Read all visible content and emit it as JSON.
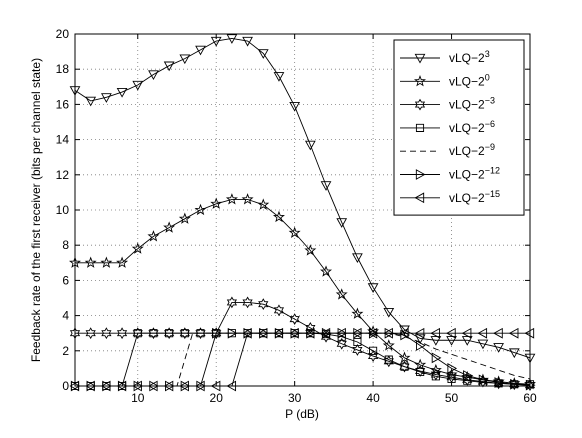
{
  "chart_data": {
    "type": "line",
    "xlabel": "P (dB)",
    "ylabel": "Feedback rate of the first receiver (bits per channel state)",
    "xlim": [
      2,
      60
    ],
    "ylim": [
      0,
      20
    ],
    "xticks": [
      10,
      20,
      30,
      40,
      50,
      60
    ],
    "yticks": [
      0,
      2,
      4,
      6,
      8,
      10,
      12,
      14,
      16,
      18,
      20
    ],
    "grid": true,
    "legend_position": "top-right",
    "series": [
      {
        "label_prefix": "vLQ−2",
        "label_exp": "3",
        "marker": "triangle-down",
        "dash": "solid",
        "points": [
          [
            2,
            16.8
          ],
          [
            4,
            16.2
          ],
          [
            6,
            16.4
          ],
          [
            8,
            16.7
          ],
          [
            10,
            17.1
          ],
          [
            12,
            17.7
          ],
          [
            14,
            18.2
          ],
          [
            16,
            18.6
          ],
          [
            18,
            19.1
          ],
          [
            20,
            19.6
          ],
          [
            22,
            19.75
          ],
          [
            24,
            19.6
          ],
          [
            26,
            18.9
          ],
          [
            28,
            17.6
          ],
          [
            30,
            15.9
          ],
          [
            32,
            13.7
          ],
          [
            34,
            11.4
          ],
          [
            36,
            9.3
          ],
          [
            38,
            7.3
          ],
          [
            40,
            5.6
          ],
          [
            42,
            4.2
          ],
          [
            44,
            3.2
          ],
          [
            46,
            2.7
          ],
          [
            48,
            2.6
          ],
          [
            50,
            2.6
          ],
          [
            52,
            2.6
          ],
          [
            54,
            2.4
          ],
          [
            56,
            2.2
          ],
          [
            58,
            1.9
          ],
          [
            60,
            1.6
          ]
        ]
      },
      {
        "label_prefix": "vLQ−2",
        "label_exp": "0",
        "marker": "star",
        "dash": "solid",
        "points": [
          [
            2,
            7.0
          ],
          [
            4,
            7.0
          ],
          [
            6,
            7.0
          ],
          [
            8,
            7.0
          ],
          [
            10,
            7.8
          ],
          [
            12,
            8.5
          ],
          [
            14,
            9.0
          ],
          [
            16,
            9.5
          ],
          [
            18,
            10.0
          ],
          [
            20,
            10.35
          ],
          [
            22,
            10.6
          ],
          [
            24,
            10.6
          ],
          [
            26,
            10.3
          ],
          [
            28,
            9.6
          ],
          [
            30,
            8.7
          ],
          [
            32,
            7.7
          ],
          [
            34,
            6.5
          ],
          [
            36,
            5.2
          ],
          [
            38,
            4.1
          ],
          [
            40,
            3.1
          ],
          [
            42,
            2.3
          ],
          [
            44,
            1.6
          ],
          [
            46,
            1.2
          ],
          [
            48,
            0.9
          ],
          [
            50,
            0.65
          ],
          [
            52,
            0.5
          ],
          [
            54,
            0.35
          ],
          [
            56,
            0.25
          ],
          [
            58,
            0.15
          ],
          [
            60,
            0.1
          ]
        ]
      },
      {
        "label_prefix": "vLQ−2",
        "label_exp": "−3",
        "marker": "hexagram",
        "dash": "solid",
        "points": [
          [
            2,
            3.0
          ],
          [
            4,
            3.0
          ],
          [
            6,
            3.0
          ],
          [
            8,
            3.0
          ],
          [
            10,
            3.0
          ],
          [
            12,
            3.0
          ],
          [
            14,
            3.0
          ],
          [
            16,
            3.0
          ],
          [
            18,
            3.0
          ],
          [
            20,
            3.0
          ],
          [
            22,
            4.75
          ],
          [
            24,
            4.75
          ],
          [
            26,
            4.65
          ],
          [
            28,
            4.3
          ],
          [
            30,
            3.8
          ],
          [
            32,
            3.3
          ],
          [
            34,
            2.8
          ],
          [
            36,
            2.4
          ],
          [
            38,
            2.05
          ],
          [
            40,
            1.7
          ],
          [
            42,
            1.4
          ],
          [
            44,
            1.1
          ],
          [
            46,
            0.85
          ],
          [
            48,
            0.65
          ],
          [
            50,
            0.5
          ],
          [
            52,
            0.35
          ],
          [
            54,
            0.25
          ],
          [
            56,
            0.15
          ],
          [
            58,
            0.1
          ],
          [
            60,
            0.05
          ]
        ]
      },
      {
        "label_prefix": "vLQ−2",
        "label_exp": "−6",
        "marker": "square",
        "dash": "solid",
        "points": [
          [
            2,
            0
          ],
          [
            4,
            0
          ],
          [
            6,
            0
          ],
          [
            8,
            0
          ],
          [
            10,
            3.0
          ],
          [
            12,
            3.0
          ],
          [
            14,
            3.0
          ],
          [
            16,
            3.0
          ],
          [
            18,
            3.0
          ],
          [
            20,
            3.0
          ],
          [
            22,
            3.0
          ],
          [
            24,
            3.0
          ],
          [
            26,
            3.0
          ],
          [
            28,
            3.0
          ],
          [
            30,
            3.0
          ],
          [
            32,
            3.0
          ],
          [
            34,
            2.95
          ],
          [
            36,
            2.8
          ],
          [
            38,
            2.5
          ],
          [
            40,
            2.0
          ],
          [
            42,
            1.5
          ],
          [
            44,
            1.1
          ],
          [
            46,
            0.8
          ],
          [
            48,
            0.55
          ],
          [
            50,
            0.4
          ],
          [
            52,
            0.3
          ],
          [
            54,
            0.2
          ],
          [
            56,
            0.15
          ],
          [
            58,
            0.1
          ],
          [
            60,
            0.1
          ]
        ]
      },
      {
        "label_prefix": "vLQ−2",
        "label_exp": "−9",
        "marker": "none",
        "dash": "dashed",
        "points": [
          [
            2,
            0
          ],
          [
            4,
            0
          ],
          [
            6,
            0
          ],
          [
            8,
            0
          ],
          [
            10,
            0
          ],
          [
            12,
            0
          ],
          [
            14,
            0
          ],
          [
            15,
            0
          ],
          [
            17,
            3.0
          ],
          [
            20,
            3.0
          ],
          [
            22,
            3.0
          ],
          [
            24,
            3.0
          ],
          [
            26,
            3.0
          ],
          [
            28,
            3.0
          ],
          [
            30,
            3.0
          ],
          [
            32,
            3.0
          ],
          [
            34,
            3.0
          ],
          [
            36,
            3.0
          ],
          [
            38,
            3.0
          ],
          [
            40,
            3.0
          ],
          [
            42,
            3.0
          ],
          [
            44,
            2.8
          ],
          [
            46,
            2.5
          ],
          [
            48,
            2.1
          ],
          [
            50,
            1.8
          ],
          [
            52,
            1.5
          ],
          [
            54,
            1.2
          ],
          [
            56,
            0.9
          ],
          [
            58,
            0.6
          ],
          [
            60,
            0.4
          ]
        ]
      },
      {
        "label_prefix": "vLQ−2",
        "label_exp": "−12",
        "marker": "triangle-right",
        "dash": "solid",
        "points": [
          [
            2,
            0
          ],
          [
            4,
            0
          ],
          [
            6,
            0
          ],
          [
            8,
            0
          ],
          [
            10,
            0
          ],
          [
            12,
            0
          ],
          [
            14,
            0
          ],
          [
            16,
            0
          ],
          [
            18,
            0
          ],
          [
            20,
            3.0
          ],
          [
            22,
            3.0
          ],
          [
            24,
            3.0
          ],
          [
            26,
            3.0
          ],
          [
            28,
            3.0
          ],
          [
            30,
            3.0
          ],
          [
            32,
            3.0
          ],
          [
            34,
            3.0
          ],
          [
            36,
            3.0
          ],
          [
            38,
            3.0
          ],
          [
            40,
            3.0
          ],
          [
            42,
            3.0
          ],
          [
            44,
            2.9
          ],
          [
            46,
            2.3
          ],
          [
            48,
            1.6
          ],
          [
            50,
            1.0
          ],
          [
            52,
            0.6
          ],
          [
            54,
            0.35
          ],
          [
            56,
            0.2
          ],
          [
            58,
            0.1
          ],
          [
            60,
            0.05
          ]
        ]
      },
      {
        "label_prefix": "vLQ−2",
        "label_exp": "−15",
        "marker": "triangle-left",
        "dash": "solid",
        "points": [
          [
            2,
            0
          ],
          [
            4,
            0
          ],
          [
            6,
            0
          ],
          [
            8,
            0
          ],
          [
            10,
            0
          ],
          [
            12,
            0
          ],
          [
            14,
            0
          ],
          [
            16,
            0
          ],
          [
            18,
            0
          ],
          [
            20,
            0
          ],
          [
            22,
            0
          ],
          [
            24,
            3.0
          ],
          [
            26,
            3.0
          ],
          [
            28,
            3.0
          ],
          [
            30,
            3.0
          ],
          [
            32,
            3.0
          ],
          [
            34,
            3.0
          ],
          [
            36,
            3.0
          ],
          [
            38,
            3.0
          ],
          [
            40,
            3.0
          ],
          [
            42,
            3.0
          ],
          [
            44,
            3.0
          ],
          [
            46,
            3.0
          ],
          [
            48,
            3.0
          ],
          [
            50,
            3.0
          ],
          [
            52,
            3.0
          ],
          [
            54,
            3.0
          ],
          [
            56,
            3.0
          ],
          [
            58,
            3.0
          ],
          [
            60,
            3.0
          ]
        ]
      }
    ]
  }
}
